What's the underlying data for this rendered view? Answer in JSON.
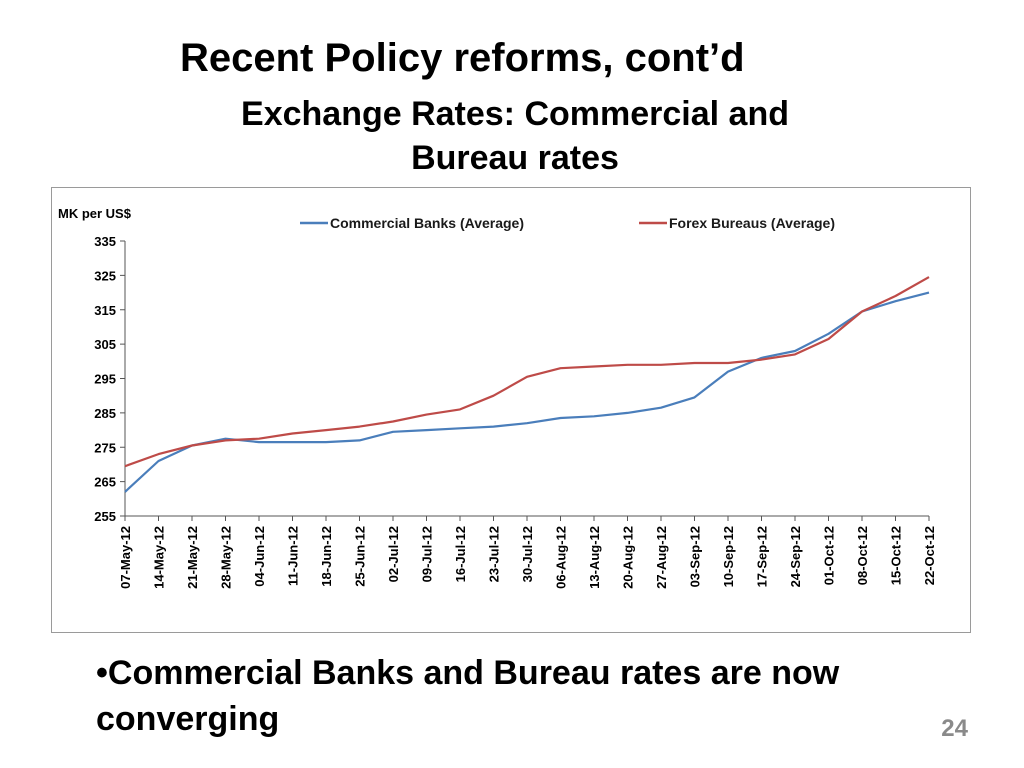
{
  "slide": {
    "title": "Recent Policy reforms, cont’d",
    "subtitle_line1": "Exchange Rates: Commercial and",
    "subtitle_line2": "Bureau rates",
    "bullet_marker": "•",
    "bullet_text": "Commercial Banks and Bureau rates are now converging",
    "page_number": "24"
  },
  "chart_data": {
    "type": "line",
    "title": "",
    "ylabel": "MK per US$",
    "xlabel": "",
    "ylim": [
      255,
      335
    ],
    "yticks": [
      255,
      265,
      275,
      285,
      295,
      305,
      315,
      325,
      335
    ],
    "grid": false,
    "legend_position": "top",
    "x_tick_labels": [
      "07-May-12",
      "14-May-12",
      "21-May-12",
      "28-May-12",
      "04-Jun-12",
      "11-Jun-12",
      "18-Jun-12",
      "25-Jun-12",
      "02-Jul-12",
      "09-Jul-12",
      "16-Jul-12",
      "23-Jul-12",
      "30-Jul-12",
      "06-Aug-12",
      "13-Aug-12",
      "20-Aug-12",
      "27-Aug-12",
      "03-Sep-12",
      "10-Sep-12",
      "17-Sep-12",
      "24-Sep-12",
      "01-Oct-12",
      "08-Oct-12",
      "15-Oct-12",
      "22-Oct-12"
    ],
    "x": [
      "07-May-12",
      "14-May-12",
      "21-May-12",
      "28-May-12",
      "04-Jun-12",
      "11-Jun-12",
      "18-Jun-12",
      "25-Jun-12",
      "02-Jul-12",
      "09-Jul-12",
      "16-Jul-12",
      "23-Jul-12",
      "30-Jul-12",
      "06-Aug-12",
      "13-Aug-12",
      "20-Aug-12",
      "27-Aug-12",
      "03-Sep-12",
      "10-Sep-12",
      "17-Sep-12",
      "24-Sep-12",
      "01-Oct-12",
      "08-Oct-12",
      "15-Oct-12",
      "22-Oct-12"
    ],
    "series": [
      {
        "name": "Commercial Banks (Average)",
        "color": "#4a7ebb",
        "values": [
          262,
          271,
          275.5,
          277.5,
          276.5,
          276.5,
          276.5,
          277,
          279.5,
          280,
          280.5,
          281,
          282,
          283.5,
          284,
          285,
          286.5,
          289.5,
          297,
          301,
          303,
          308,
          314.5,
          317.5,
          320
        ]
      },
      {
        "name": "Forex Bureaus (Average)",
        "color": "#be4b48",
        "values": [
          269.5,
          273,
          275.5,
          277,
          277.5,
          279,
          280,
          281,
          282.5,
          284.5,
          286,
          290,
          295.5,
          298,
          298.5,
          299,
          299,
          299.5,
          299.5,
          300.5,
          302,
          306.5,
          314.5,
          319,
          324.5
        ]
      }
    ]
  }
}
